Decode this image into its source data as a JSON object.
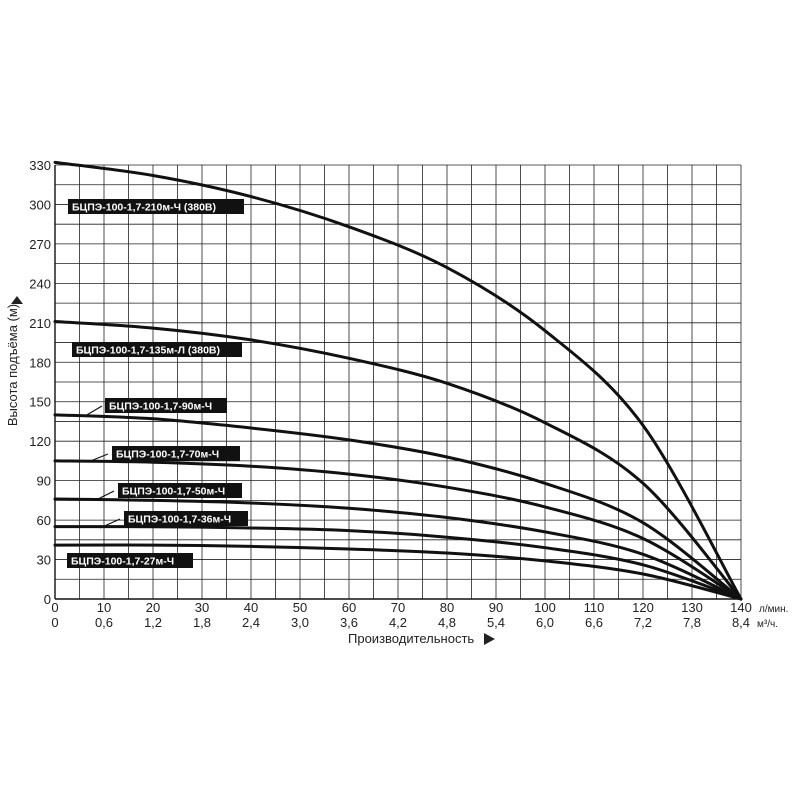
{
  "chart_data": {
    "type": "line",
    "title": "",
    "ylabel": "Высота подъёма (м)",
    "xlabel": "Производительность",
    "x_unit_primary": "л/мин.",
    "x_unit_secondary": "м³/ч.",
    "x_ticks_primary": [
      "0",
      "10",
      "20",
      "30",
      "40",
      "50",
      "60",
      "70",
      "80",
      "90",
      "100",
      "110",
      "120",
      "130",
      "140"
    ],
    "x_ticks_secondary": [
      "0",
      "0,6",
      "1,2",
      "1,8",
      "2,4",
      "3,0",
      "3,6",
      "4,2",
      "4,8",
      "5,4",
      "6,0",
      "6,6",
      "7,2",
      "7,8",
      "8,4"
    ],
    "y_ticks": [
      "0",
      "30",
      "60",
      "90",
      "120",
      "150",
      "180",
      "210",
      "240",
      "270",
      "300",
      "330"
    ],
    "xlim": [
      0,
      140
    ],
    "ylim": [
      0,
      330
    ],
    "grid": true,
    "series": [
      {
        "name": "БЦПЭ-100-1,7-210м-Ч (380В)",
        "x": [
          0,
          20,
          40,
          60,
          80,
          100,
          120,
          140
        ],
        "values": [
          332,
          322,
          306,
          283,
          252,
          204,
          132,
          0
        ]
      },
      {
        "name": "БЦПЭ-100-1,7-135м-Л (380В)",
        "x": [
          0,
          20,
          40,
          60,
          80,
          100,
          120,
          140
        ],
        "values": [
          211,
          206,
          197,
          183,
          164,
          134,
          88,
          0
        ]
      },
      {
        "name": "БЦПЭ-100-1,7-90м-Ч",
        "x": [
          0,
          20,
          40,
          60,
          80,
          100,
          120,
          140
        ],
        "values": [
          140,
          137,
          130,
          121,
          108,
          88,
          58,
          0
        ]
      },
      {
        "name": "БЦПЭ-100-1,7-70м-Ч",
        "x": [
          0,
          20,
          40,
          60,
          80,
          100,
          120,
          140
        ],
        "values": [
          105,
          104,
          101,
          95,
          85,
          70,
          46,
          0
        ]
      },
      {
        "name": "БЦПЭ-100-1,7-50м-Ч",
        "x": [
          0,
          20,
          40,
          60,
          80,
          100,
          120,
          140
        ],
        "values": [
          76,
          75,
          73,
          69,
          62,
          51,
          34,
          0
        ]
      },
      {
        "name": "БЦПЭ-100-1,7-36м-Ч",
        "x": [
          0,
          20,
          40,
          60,
          80,
          100,
          120,
          140
        ],
        "values": [
          55,
          55,
          54,
          52,
          47,
          39,
          26,
          0
        ]
      },
      {
        "name": "БЦПЭ-100-1,7-27м-Ч",
        "x": [
          0,
          20,
          40,
          60,
          80,
          100,
          120,
          140
        ],
        "values": [
          41,
          41,
          40,
          38,
          35,
          29,
          19,
          0
        ]
      }
    ]
  }
}
